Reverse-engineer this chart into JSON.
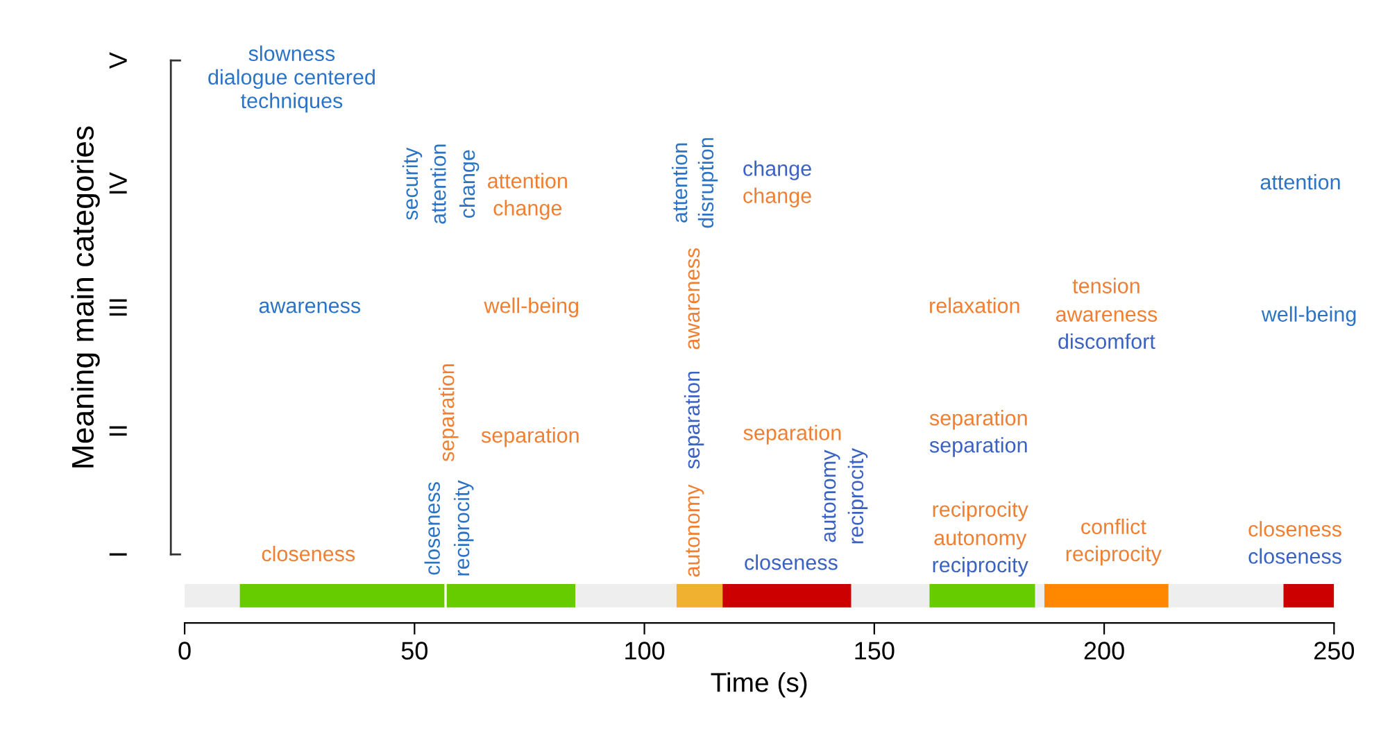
{
  "chart_data": [
    {
      "type": "other",
      "ylabel": "Meaning main categories",
      "annotations": [
        "V",
        "IV",
        "III",
        "II",
        "I",
        "slowness\ndialogue centered\ntechniques",
        "security",
        "attention",
        "change",
        "attention",
        "change",
        "attention",
        "disruption",
        "change",
        "change",
        "attention",
        "awareness",
        "well-being",
        "awareness",
        "relaxation",
        "tension",
        "awareness",
        "discomfort",
        "well-being",
        "separation",
        "separation",
        "separation",
        "separation",
        "autonomy",
        "reciprocity",
        "separation",
        "separation",
        "closeness",
        "reciprocity",
        "autonomy",
        "closeness",
        "closeness",
        "reciprocity",
        "autonomy",
        "reciprocity",
        "conflict",
        "reciprocity",
        "closeness",
        "closeness"
      ]
    },
    {
      "type": "bar",
      "orientation": "horizontal",
      "categories": [
        null
      ],
      "xlabel": "Time (s)",
      "xlim": [
        0,
        250
      ],
      "xticks": [
        0,
        50,
        100,
        150,
        200,
        250
      ],
      "series": [
        {
          "color": "#eeeeee",
          "base": [
            0
          ],
          "values": [
            12
          ]
        },
        {
          "color": "#66cc00",
          "base": [
            12
          ],
          "values": [
            44.5
          ]
        },
        {
          "color": "#66cc00",
          "base": [
            57
          ],
          "values": [
            28
          ]
        },
        {
          "color": "#eeeeee",
          "base": [
            85
          ],
          "values": [
            22
          ]
        },
        {
          "color": "#f0b030",
          "base": [
            107
          ],
          "values": [
            10
          ]
        },
        {
          "color": "#cc0000",
          "base": [
            117
          ],
          "values": [
            28
          ]
        },
        {
          "color": "#eeeeee",
          "base": [
            145
          ],
          "values": [
            17
          ]
        },
        {
          "color": "#66cc00",
          "base": [
            162
          ],
          "values": [
            23
          ]
        },
        {
          "color": "#eeeeee",
          "base": [
            185
          ],
          "values": [
            2
          ]
        },
        {
          "color": "#ff8800",
          "base": [
            187
          ],
          "values": [
            27
          ]
        },
        {
          "color": "#eeeeee",
          "base": [
            214
          ],
          "values": [
            25
          ]
        },
        {
          "color": "#cc0000",
          "base": [
            239
          ],
          "values": [
            11
          ]
        }
      ]
    }
  ]
}
